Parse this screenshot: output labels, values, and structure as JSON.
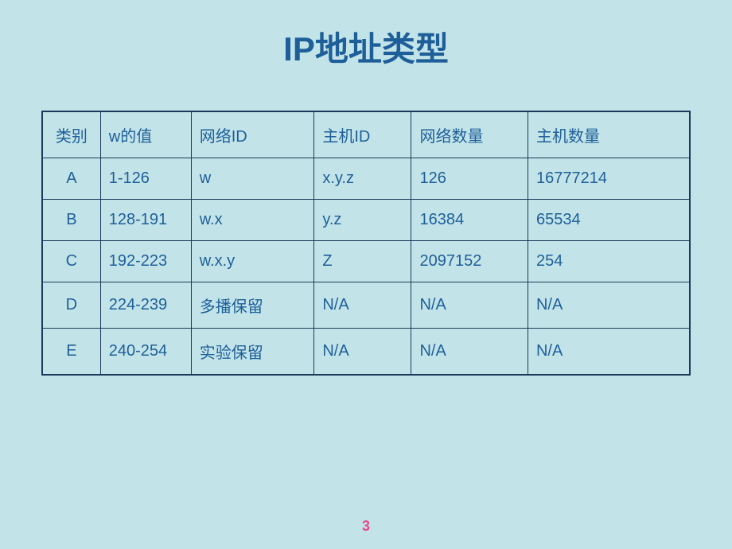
{
  "title": "IP地址类型",
  "page_number": "3",
  "colors": {
    "background": "#c2e4e8",
    "title_color": "#1f5f99",
    "text_color": "#1f5f99",
    "border_color": "#1a3a5a",
    "page_number_color": "#e94b8a"
  },
  "table": {
    "headers": {
      "class": "类别",
      "w_value": "w的值",
      "network_id": "网络ID",
      "host_id": "主机ID",
      "network_count": "网络数量",
      "host_count": "主机数量"
    },
    "rows": [
      {
        "class": "A",
        "w_value": "1-126",
        "network_id": "w",
        "host_id": "x.y.z",
        "network_count": "126",
        "host_count": "16777214"
      },
      {
        "class": "B",
        "w_value": "128-191",
        "network_id": "w.x",
        "host_id": "y.z",
        "network_count": "16384",
        "host_count": "65534"
      },
      {
        "class": "C",
        "w_value": "192-223",
        "network_id": "w.x.y",
        "host_id": "Z",
        "network_count": "2097152",
        "host_count": "254"
      },
      {
        "class": "D",
        "w_value": "224-239",
        "network_id": "多播保留",
        "host_id": "N/A",
        "network_count": "N/A",
        "host_count": "N/A"
      },
      {
        "class": "E",
        "w_value": "240-254",
        "network_id": "实验保留",
        "host_id": "N/A",
        "network_count": "N/A",
        "host_count": "N/A"
      }
    ]
  }
}
